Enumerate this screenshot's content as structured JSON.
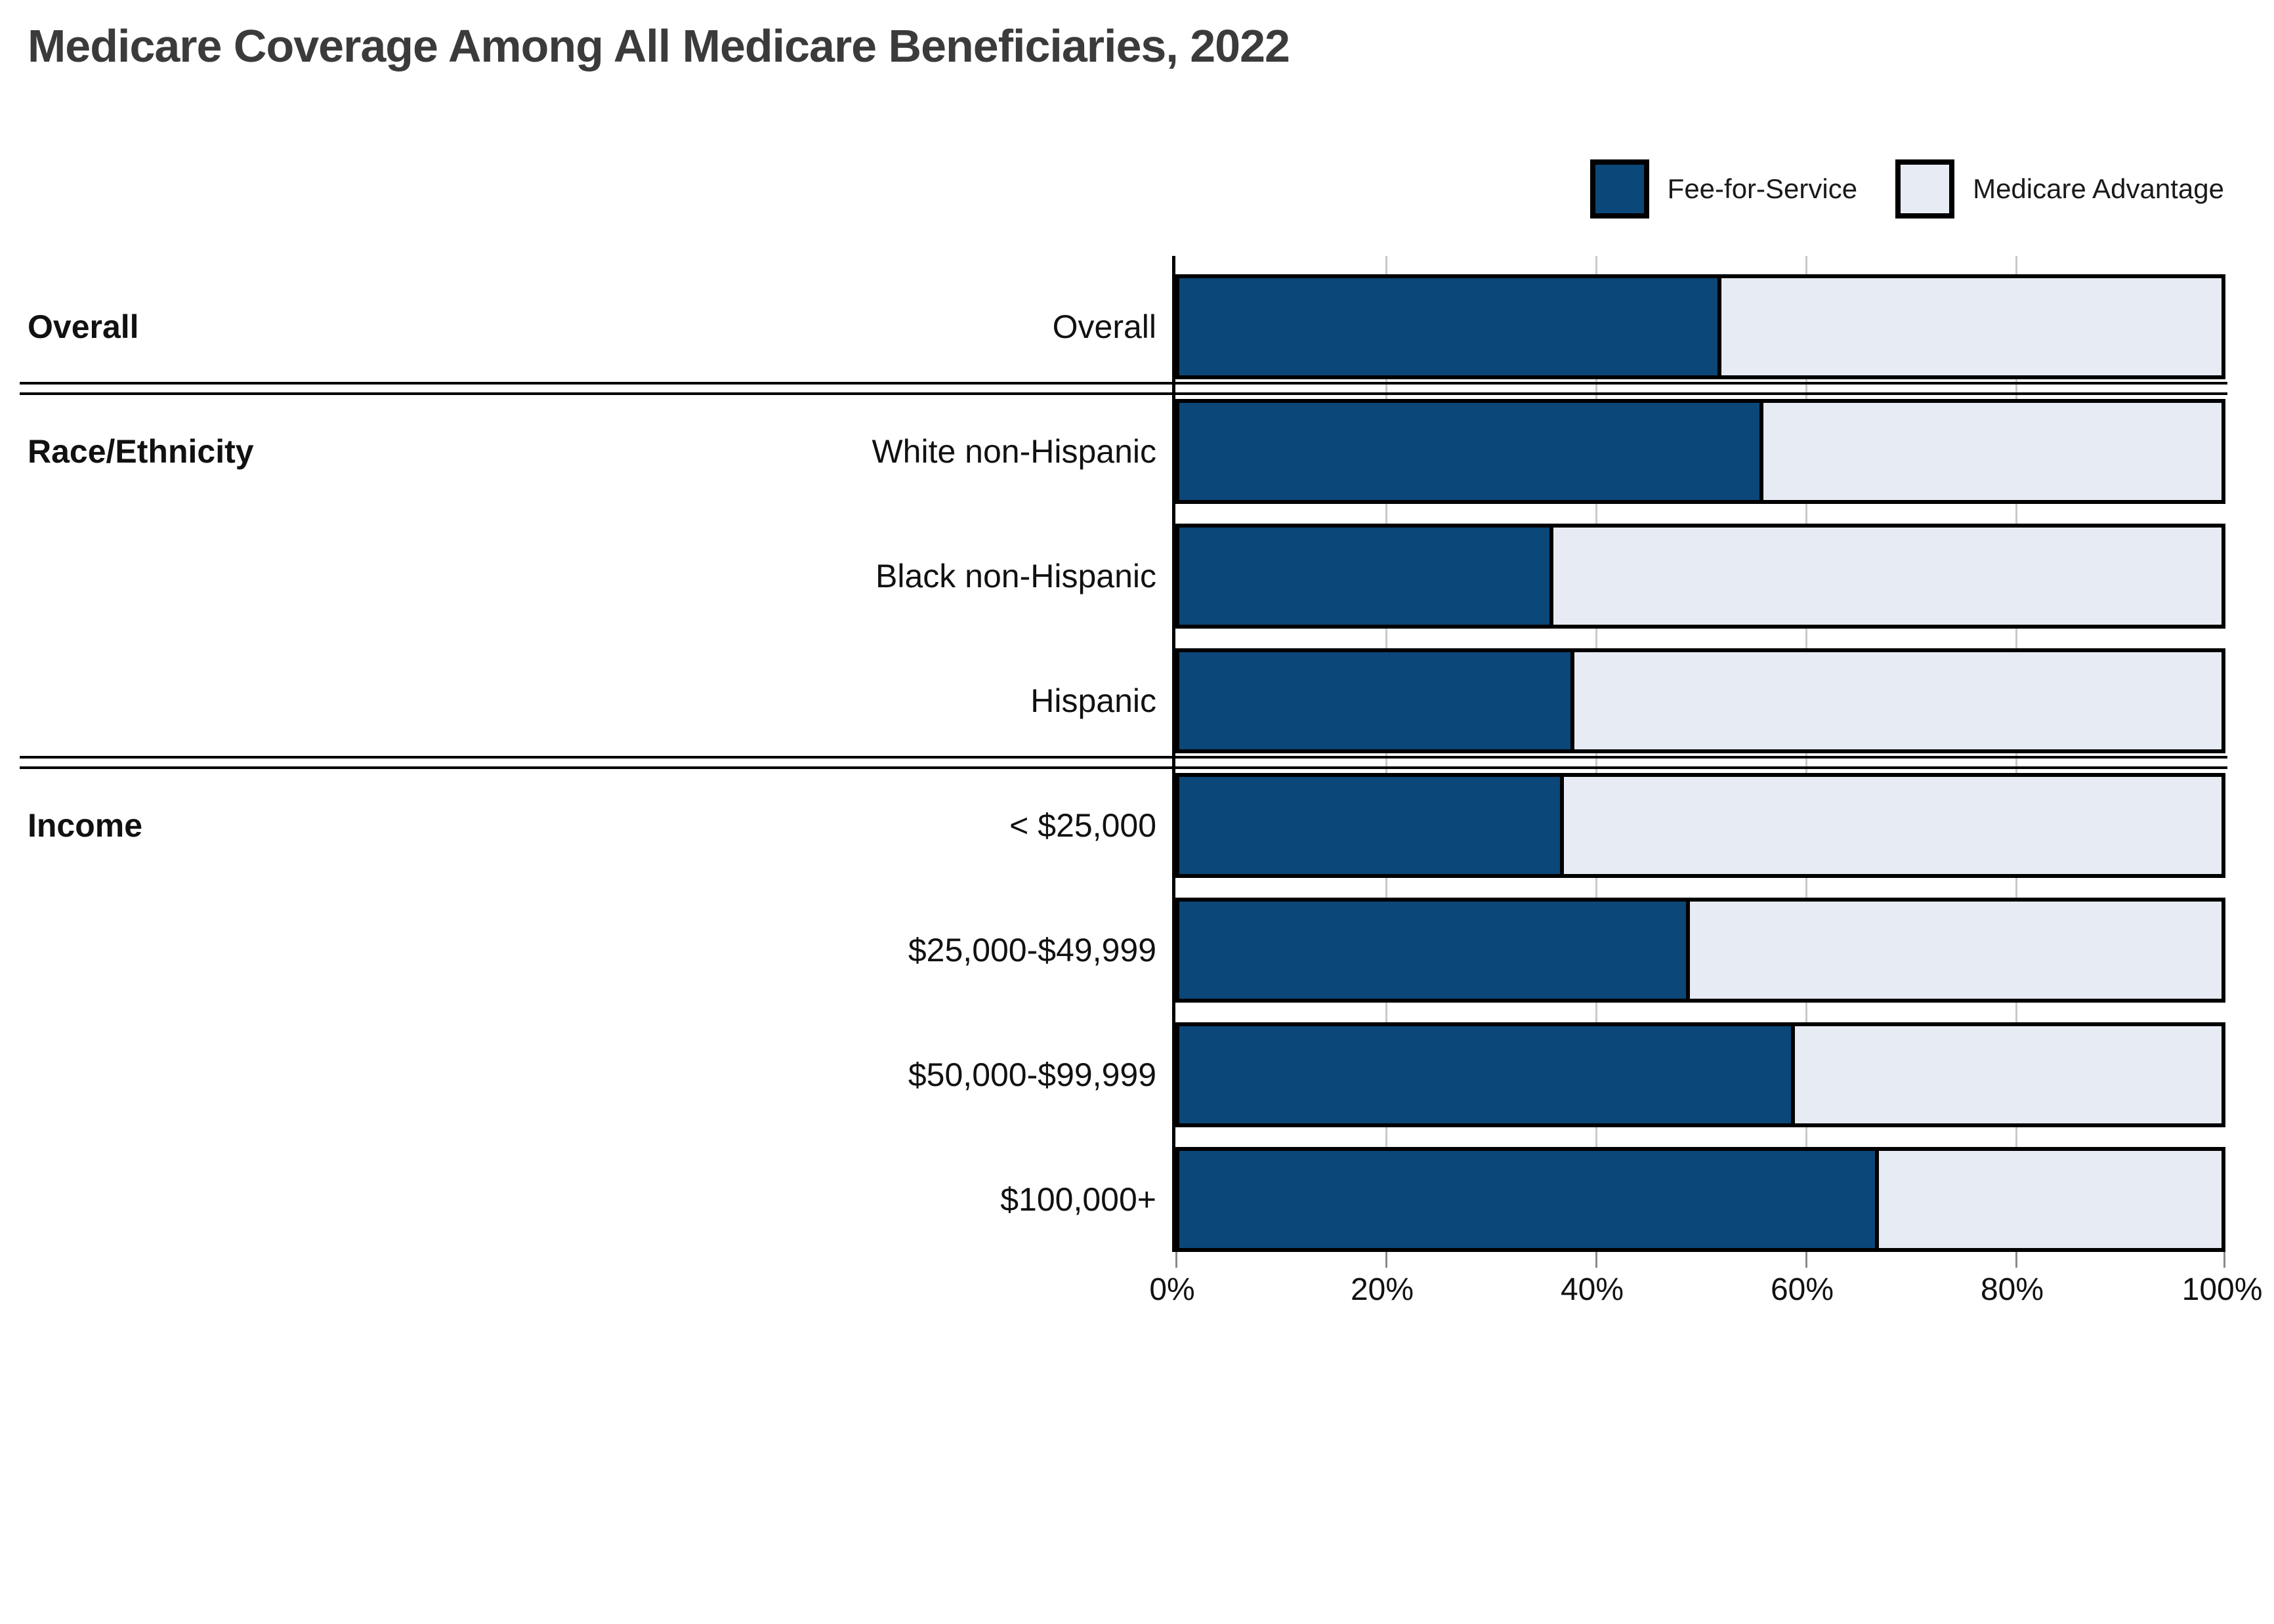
{
  "title": "Medicare Coverage Among All Medicare Beneficiaries, 2022",
  "legend": {
    "items": [
      {
        "label": "Fee-for-Service",
        "color": "#0B4778"
      },
      {
        "label": "Medicare Advantage",
        "color": "#E7EBF3"
      }
    ]
  },
  "groups": [
    {
      "label": "Overall"
    },
    {
      "label": "Race/Ethnicity"
    },
    {
      "label": "Income"
    }
  ],
  "rows": [
    {
      "label": "Overall",
      "ffs": 52,
      "ma": 48
    },
    {
      "label": "White non-Hispanic",
      "ffs": 56,
      "ma": 44
    },
    {
      "label": "Black non-Hispanic",
      "ffs": 36,
      "ma": 64
    },
    {
      "label": "Hispanic",
      "ffs": 38,
      "ma": 62
    },
    {
      "label": "< $25,000",
      "ffs": 37,
      "ma": 63
    },
    {
      "label": "$25,000-$49,999",
      "ffs": 49,
      "ma": 51
    },
    {
      "label": "$50,000-$99,999",
      "ffs": 59,
      "ma": 41
    },
    {
      "label": "$100,000+",
      "ffs": 67,
      "ma": 33
    }
  ],
  "axis": {
    "ticks": [
      "0%",
      "20%",
      "40%",
      "60%",
      "80%",
      "100%"
    ]
  },
  "colors": {
    "fee_for_service": "#0B4778",
    "medicare_advantage": "#E7EBF3",
    "bar_border": "#000000",
    "gridline": "#c9c9c9",
    "title_text": "#3b3b3b"
  },
  "chart_data": {
    "type": "bar",
    "orientation": "horizontal",
    "stacked": true,
    "title": "Medicare Coverage Among All Medicare Beneficiaries, 2022",
    "categories": [
      "Overall",
      "White non-Hispanic",
      "Black non-Hispanic",
      "Hispanic",
      "< $25,000",
      "$25,000-$49,999",
      "$50,000-$99,999",
      "$100,000+"
    ],
    "category_groups": [
      {
        "label": "Overall",
        "categories": [
          "Overall"
        ]
      },
      {
        "label": "Race/Ethnicity",
        "categories": [
          "White non-Hispanic",
          "Black non-Hispanic",
          "Hispanic"
        ]
      },
      {
        "label": "Income",
        "categories": [
          "< $25,000",
          "$25,000-$49,999",
          "$50,000-$99,999",
          "$100,000+"
        ]
      }
    ],
    "series": [
      {
        "name": "Fee-for-Service",
        "color": "#0B4778",
        "values": [
          52,
          56,
          36,
          38,
          37,
          49,
          59,
          67
        ]
      },
      {
        "name": "Medicare Advantage",
        "color": "#E7EBF3",
        "values": [
          48,
          44,
          64,
          62,
          63,
          51,
          41,
          33
        ]
      }
    ],
    "units": "%",
    "xlabel": "",
    "ylabel": "",
    "xlim": [
      0,
      100
    ],
    "x_ticks": [
      "0%",
      "20%",
      "40%",
      "60%",
      "80%",
      "100%"
    ],
    "grid": true,
    "legend_position": "top-right"
  }
}
